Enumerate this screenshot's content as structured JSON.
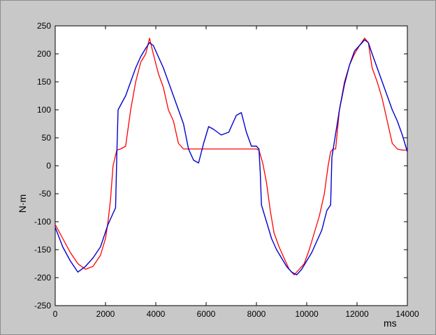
{
  "chart_data": {
    "type": "line",
    "title": "",
    "xlabel": "ms",
    "ylabel": "N·m",
    "xlim": [
      0,
      14000
    ],
    "ylim": [
      -250,
      250
    ],
    "xticks": [
      0,
      2000,
      4000,
      6000,
      8000,
      10000,
      12000,
      14000
    ],
    "yticks": [
      250,
      200,
      150,
      100,
      50,
      0,
      -50,
      -100,
      -150,
      -200,
      -250
    ],
    "grid": false,
    "legend": "none",
    "series": [
      {
        "color": "#ff0000",
        "x": [
          0,
          300,
          600,
          900,
          1200,
          1500,
          1800,
          2000,
          2100,
          2200,
          2300,
          2450,
          2600,
          2800,
          3000,
          3200,
          3400,
          3600,
          3750,
          3900,
          4100,
          4300,
          4500,
          4700,
          4900,
          5100,
          5300,
          6000,
          7000,
          8000,
          8100,
          8250,
          8400,
          8550,
          8700,
          8900,
          9100,
          9300,
          9500,
          9700,
          9900,
          10100,
          10300,
          10500,
          10700,
          10850,
          10950,
          11050,
          11150,
          11300,
          11500,
          11700,
          11900,
          12100,
          12300,
          12450,
          12600,
          12800,
          13000,
          13200,
          13400,
          13600,
          13800,
          14000
        ],
        "values": [
          -105,
          -130,
          -155,
          -175,
          -185,
          -180,
          -160,
          -130,
          -100,
          -60,
          0,
          28,
          30,
          35,
          100,
          150,
          185,
          200,
          228,
          200,
          165,
          140,
          100,
          80,
          40,
          30,
          30,
          30,
          30,
          30,
          28,
          5,
          -30,
          -80,
          -120,
          -145,
          -165,
          -185,
          -195,
          -185,
          -175,
          -150,
          -120,
          -90,
          -50,
          0,
          25,
          30,
          30,
          100,
          150,
          180,
          200,
          215,
          228,
          220,
          175,
          150,
          120,
          80,
          40,
          30,
          28,
          28
        ]
      },
      {
        "color": "#0000cc",
        "x": [
          0,
          300,
          600,
          900,
          1200,
          1500,
          1800,
          2100,
          2400,
          2450,
          2500,
          2800,
          3000,
          3200,
          3400,
          3600,
          3750,
          3900,
          4100,
          4300,
          4500,
          4700,
          4900,
          5100,
          5300,
          5500,
          5700,
          5900,
          6100,
          6300,
          6600,
          6900,
          7200,
          7400,
          7600,
          7800,
          8000,
          8100,
          8150,
          8200,
          8400,
          8600,
          8800,
          9000,
          9200,
          9400,
          9600,
          9800,
          10000,
          10200,
          10400,
          10600,
          10800,
          10950,
          11000,
          11300,
          11500,
          11700,
          11900,
          12100,
          12300,
          12450,
          12600,
          12800,
          13000,
          13200,
          13400,
          13600,
          13800,
          14000
        ],
        "values": [
          -110,
          -145,
          -170,
          -190,
          -180,
          -165,
          -145,
          -105,
          -75,
          20,
          100,
          125,
          150,
          175,
          195,
          210,
          220,
          215,
          195,
          175,
          150,
          125,
          100,
          75,
          30,
          10,
          5,
          40,
          70,
          65,
          55,
          60,
          90,
          95,
          60,
          35,
          35,
          30,
          -10,
          -70,
          -100,
          -130,
          -150,
          -165,
          -180,
          -190,
          -195,
          -185,
          -170,
          -155,
          -135,
          -115,
          -80,
          -70,
          15,
          100,
          145,
          180,
          205,
          215,
          225,
          220,
          200,
          175,
          150,
          125,
          100,
          80,
          55,
          25
        ]
      }
    ]
  }
}
